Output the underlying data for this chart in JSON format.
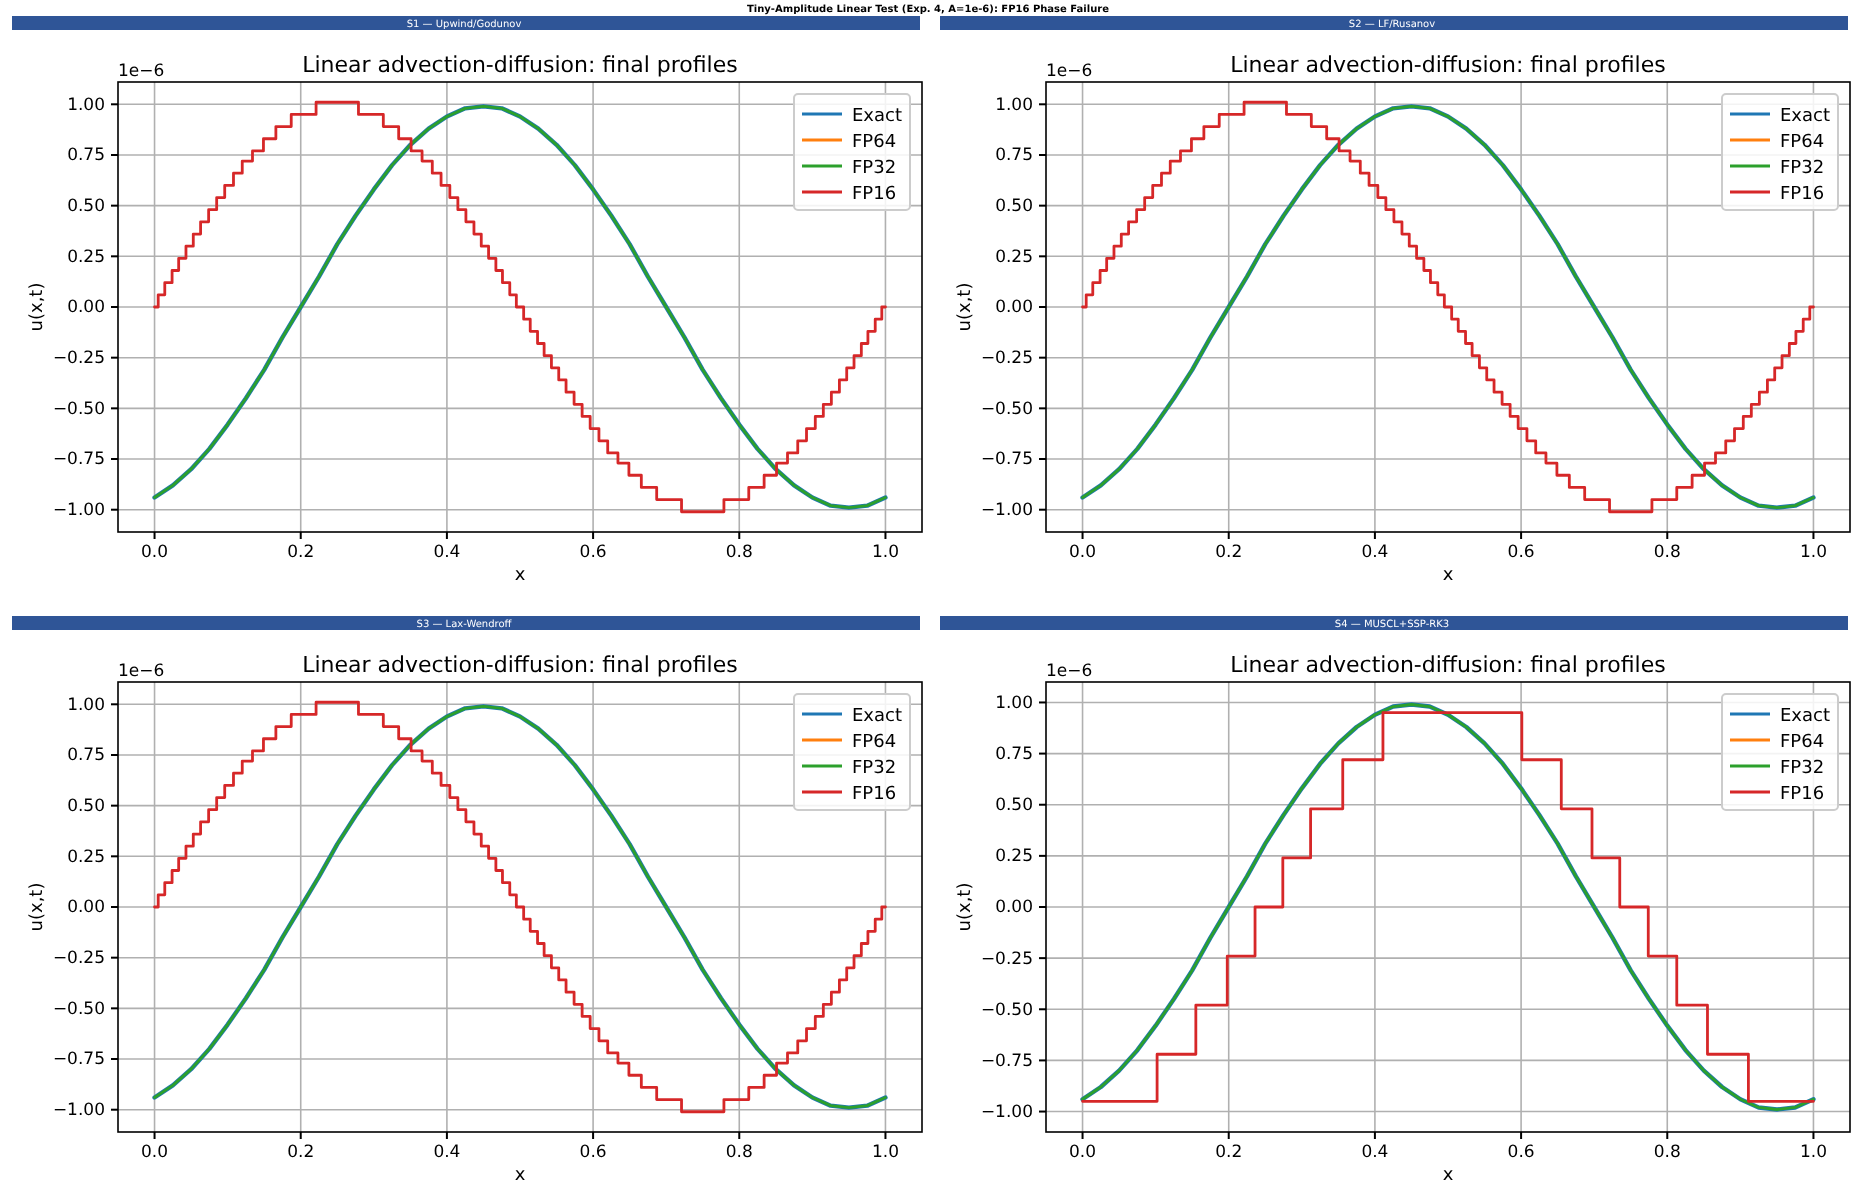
{
  "chart_data": [
    {
      "type": "line",
      "title": "Linear advection-diffusion: final profiles",
      "subtitle": "S1 — Upwind/Godunov",
      "xlabel": "x",
      "ylabel": "u(x,t)",
      "annotations": [
        "Tiny-Amplitude Linear Test (Exp. 4, A=1e-6): FP16 Phase Failure",
        "1e−6"
      ],
      "legend": "top right",
      "grid": true,
      "xlim": [
        -0.05,
        1.05
      ],
      "ylim": [
        -1.11,
        1.11
      ],
      "xticks": [
        {
          "value": 0,
          "label": "0.0"
        },
        {
          "value": 0.2,
          "label": "0.2"
        },
        {
          "value": 0.4,
          "label": "0.4"
        },
        {
          "value": 0.6,
          "label": "0.6"
        },
        {
          "value": 0.8,
          "label": "0.8"
        },
        {
          "value": 1,
          "label": "1.0"
        }
      ],
      "yticks": [
        {
          "value": -1,
          "label": "−1.00"
        },
        {
          "value": -0.75,
          "label": "−0.75"
        },
        {
          "value": -0.5,
          "label": "−0.50"
        },
        {
          "value": -0.25,
          "label": "−0.25"
        },
        {
          "value": 0,
          "label": "0.00"
        },
        {
          "value": 0.25,
          "label": "0.25"
        },
        {
          "value": 0.5,
          "label": "0.50"
        },
        {
          "value": 0.75,
          "label": "0.75"
        },
        {
          "value": 1,
          "label": "1.00"
        }
      ],
      "x": [
        0,
        0.025,
        0.05,
        0.075,
        0.1,
        0.125,
        0.15,
        0.175,
        0.2,
        0.225,
        0.25,
        0.275,
        0.3,
        0.325,
        0.35,
        0.375,
        0.4,
        0.425,
        0.45,
        0.475,
        0.5,
        0.525,
        0.55,
        0.575,
        0.6,
        0.625,
        0.65,
        0.675,
        0.7,
        0.725,
        0.75,
        0.775,
        0.8,
        0.825,
        0.85,
        0.875,
        0.9,
        0.925,
        0.95,
        0.975,
        1
      ],
      "series": [
        {
          "name": "Exact",
          "color": "#1f77b4",
          "values": [
            -0.94,
            -0.88,
            -0.8,
            -0.7,
            -0.58,
            -0.45,
            -0.31,
            -0.15,
            0,
            0.15,
            0.31,
            0.45,
            0.58,
            0.7,
            0.8,
            0.88,
            0.94,
            0.98,
            0.99,
            0.98,
            0.94,
            0.88,
            0.8,
            0.7,
            0.58,
            0.45,
            0.31,
            0.15,
            0,
            -0.15,
            -0.31,
            -0.45,
            -0.58,
            -0.7,
            -0.8,
            -0.88,
            -0.94,
            -0.98,
            -0.99,
            -0.98,
            -0.94
          ]
        },
        {
          "name": "FP64",
          "color": "#ff7f0e",
          "values": [
            null,
            null,
            null,
            null,
            null,
            null,
            null,
            null,
            null,
            null,
            null,
            null,
            null,
            null,
            null,
            null,
            null,
            null,
            null,
            null,
            null,
            null,
            null,
            null,
            null,
            null,
            null,
            null,
            null,
            null,
            null,
            null,
            null,
            null,
            null,
            null,
            null,
            null,
            null,
            null,
            null
          ]
        },
        {
          "name": "FP32",
          "color": "#2ca02c",
          "values": [
            -0.94,
            -0.88,
            -0.8,
            -0.7,
            -0.58,
            -0.45,
            -0.31,
            -0.15,
            0,
            0.15,
            0.31,
            0.45,
            0.58,
            0.7,
            0.8,
            0.88,
            0.94,
            0.98,
            0.99,
            0.98,
            0.94,
            0.88,
            0.8,
            0.7,
            0.58,
            0.45,
            0.31,
            0.15,
            0,
            -0.15,
            -0.31,
            -0.45,
            -0.58,
            -0.7,
            -0.8,
            -0.88,
            -0.94,
            -0.98,
            -0.99,
            -0.98,
            -0.94
          ]
        },
        {
          "name": "FP16",
          "color": "#d62728",
          "type": "step",
          "x": [
            0,
            0.005,
            0.014,
            0.024,
            0.033,
            0.043,
            0.053,
            0.063,
            0.074,
            0.085,
            0.096,
            0.108,
            0.12,
            0.134,
            0.149,
            0.166,
            0.187,
            0.221,
            0.279,
            0.313,
            0.334,
            0.351,
            0.366,
            0.38,
            0.392,
            0.404,
            0.415,
            0.426,
            0.437,
            0.447,
            0.457,
            0.467,
            0.476,
            0.486,
            0.495,
            0.505,
            0.514,
            0.524,
            0.533,
            0.543,
            0.553,
            0.563,
            0.574,
            0.585,
            0.596,
            0.608,
            0.62,
            0.634,
            0.649,
            0.666,
            0.687,
            0.721,
            0.779,
            0.813,
            0.834,
            0.851,
            0.866,
            0.88,
            0.892,
            0.904,
            0.915,
            0.926,
            0.937,
            0.947,
            0.957,
            0.967,
            0.976,
            0.986,
            0.995,
            1
          ],
          "values": [
            0,
            0.06,
            0.12,
            0.18,
            0.24,
            0.3,
            0.36,
            0.42,
            0.48,
            0.54,
            0.6,
            0.66,
            0.72,
            0.77,
            0.83,
            0.89,
            0.95,
            1.01,
            0.95,
            0.89,
            0.83,
            0.77,
            0.72,
            0.66,
            0.6,
            0.54,
            0.48,
            0.42,
            0.36,
            0.3,
            0.24,
            0.18,
            0.12,
            0.06,
            0,
            -0.06,
            -0.12,
            -0.18,
            -0.24,
            -0.3,
            -0.36,
            -0.42,
            -0.48,
            -0.54,
            -0.6,
            -0.66,
            -0.72,
            -0.77,
            -0.83,
            -0.89,
            -0.95,
            -1.01,
            -0.95,
            -0.89,
            -0.83,
            -0.77,
            -0.72,
            -0.66,
            -0.6,
            -0.54,
            -0.48,
            -0.42,
            -0.36,
            -0.3,
            -0.24,
            -0.18,
            -0.12,
            -0.06,
            0,
            0
          ]
        }
      ]
    },
    {
      "type": "line",
      "title": "Linear advection-diffusion: final profiles",
      "subtitle": "S2 — LF/Rusanov",
      "xlabel": "x",
      "ylabel": "u(x,t)",
      "annotations": [
        "1e−6"
      ],
      "legend": "top right",
      "grid": true,
      "xlim": [
        -0.05,
        1.05
      ],
      "ylim": [
        -1.11,
        1.11
      ],
      "xticks": [
        {
          "value": 0,
          "label": "0.0"
        },
        {
          "value": 0.2,
          "label": "0.2"
        },
        {
          "value": 0.4,
          "label": "0.4"
        },
        {
          "value": 0.6,
          "label": "0.6"
        },
        {
          "value": 0.8,
          "label": "0.8"
        },
        {
          "value": 1,
          "label": "1.0"
        }
      ],
      "yticks": [
        {
          "value": -1,
          "label": "−1.00"
        },
        {
          "value": -0.75,
          "label": "−0.75"
        },
        {
          "value": -0.5,
          "label": "−0.50"
        },
        {
          "value": -0.25,
          "label": "−0.25"
        },
        {
          "value": 0,
          "label": "0.00"
        },
        {
          "value": 0.25,
          "label": "0.25"
        },
        {
          "value": 0.5,
          "label": "0.50"
        },
        {
          "value": 0.75,
          "label": "0.75"
        },
        {
          "value": 1,
          "label": "1.00"
        }
      ],
      "x": [
        0,
        0.025,
        0.05,
        0.075,
        0.1,
        0.125,
        0.15,
        0.175,
        0.2,
        0.225,
        0.25,
        0.275,
        0.3,
        0.325,
        0.35,
        0.375,
        0.4,
        0.425,
        0.45,
        0.475,
        0.5,
        0.525,
        0.55,
        0.575,
        0.6,
        0.625,
        0.65,
        0.675,
        0.7,
        0.725,
        0.75,
        0.775,
        0.8,
        0.825,
        0.85,
        0.875,
        0.9,
        0.925,
        0.95,
        0.975,
        1
      ],
      "series": [
        {
          "name": "Exact",
          "color": "#1f77b4",
          "values": [
            -0.94,
            -0.88,
            -0.8,
            -0.7,
            -0.58,
            -0.45,
            -0.31,
            -0.15,
            0,
            0.15,
            0.31,
            0.45,
            0.58,
            0.7,
            0.8,
            0.88,
            0.94,
            0.98,
            0.99,
            0.98,
            0.94,
            0.88,
            0.8,
            0.7,
            0.58,
            0.45,
            0.31,
            0.15,
            0,
            -0.15,
            -0.31,
            -0.45,
            -0.58,
            -0.7,
            -0.8,
            -0.88,
            -0.94,
            -0.98,
            -0.99,
            -0.98,
            -0.94
          ]
        },
        {
          "name": "FP64",
          "color": "#ff7f0e",
          "values": [
            null,
            null,
            null,
            null,
            null,
            null,
            null,
            null,
            null,
            null,
            null,
            null,
            null,
            null,
            null,
            null,
            null,
            null,
            null,
            null,
            null,
            null,
            null,
            null,
            null,
            null,
            null,
            null,
            null,
            null,
            null,
            null,
            null,
            null,
            null,
            null,
            null,
            null,
            null,
            null,
            null
          ]
        },
        {
          "name": "FP32",
          "color": "#2ca02c",
          "values": [
            -0.94,
            -0.88,
            -0.8,
            -0.7,
            -0.58,
            -0.45,
            -0.31,
            -0.15,
            0,
            0.15,
            0.31,
            0.45,
            0.58,
            0.7,
            0.8,
            0.88,
            0.94,
            0.98,
            0.99,
            0.98,
            0.94,
            0.88,
            0.8,
            0.7,
            0.58,
            0.45,
            0.31,
            0.15,
            0,
            -0.15,
            -0.31,
            -0.45,
            -0.58,
            -0.7,
            -0.8,
            -0.88,
            -0.94,
            -0.98,
            -0.99,
            -0.98,
            -0.94
          ]
        },
        {
          "name": "FP16",
          "color": "#d62728",
          "type": "step",
          "x": [
            0,
            0.005,
            0.014,
            0.024,
            0.033,
            0.043,
            0.053,
            0.063,
            0.074,
            0.085,
            0.096,
            0.108,
            0.12,
            0.134,
            0.149,
            0.166,
            0.187,
            0.221,
            0.279,
            0.313,
            0.334,
            0.351,
            0.366,
            0.38,
            0.392,
            0.404,
            0.415,
            0.426,
            0.437,
            0.447,
            0.457,
            0.467,
            0.476,
            0.486,
            0.495,
            0.505,
            0.514,
            0.524,
            0.533,
            0.543,
            0.553,
            0.563,
            0.574,
            0.585,
            0.596,
            0.608,
            0.62,
            0.634,
            0.649,
            0.666,
            0.687,
            0.721,
            0.779,
            0.813,
            0.834,
            0.851,
            0.866,
            0.88,
            0.892,
            0.904,
            0.915,
            0.926,
            0.937,
            0.947,
            0.957,
            0.967,
            0.976,
            0.986,
            0.995,
            1
          ],
          "values": [
            0,
            0.06,
            0.12,
            0.18,
            0.24,
            0.3,
            0.36,
            0.42,
            0.48,
            0.54,
            0.6,
            0.66,
            0.72,
            0.77,
            0.83,
            0.89,
            0.95,
            1.01,
            0.95,
            0.89,
            0.83,
            0.77,
            0.72,
            0.66,
            0.6,
            0.54,
            0.48,
            0.42,
            0.36,
            0.3,
            0.24,
            0.18,
            0.12,
            0.06,
            0,
            -0.06,
            -0.12,
            -0.18,
            -0.24,
            -0.3,
            -0.36,
            -0.42,
            -0.48,
            -0.54,
            -0.6,
            -0.66,
            -0.72,
            -0.77,
            -0.83,
            -0.89,
            -0.95,
            -1.01,
            -0.95,
            -0.89,
            -0.83,
            -0.77,
            -0.72,
            -0.66,
            -0.6,
            -0.54,
            -0.48,
            -0.42,
            -0.36,
            -0.3,
            -0.24,
            -0.18,
            -0.12,
            -0.06,
            0,
            0
          ]
        }
      ]
    },
    {
      "type": "line",
      "title": "Linear advection-diffusion: final profiles",
      "subtitle": "S3 — Lax-Wendroff",
      "xlabel": "x",
      "ylabel": "u(x,t)",
      "annotations": [
        "1e−6"
      ],
      "legend": "top right",
      "grid": true,
      "xlim": [
        -0.05,
        1.05
      ],
      "ylim": [
        -1.11,
        1.11
      ],
      "xticks": [
        {
          "value": 0,
          "label": "0.0"
        },
        {
          "value": 0.2,
          "label": "0.2"
        },
        {
          "value": 0.4,
          "label": "0.4"
        },
        {
          "value": 0.6,
          "label": "0.6"
        },
        {
          "value": 0.8,
          "label": "0.8"
        },
        {
          "value": 1,
          "label": "1.0"
        }
      ],
      "yticks": [
        {
          "value": -1,
          "label": "−1.00"
        },
        {
          "value": -0.75,
          "label": "−0.75"
        },
        {
          "value": -0.5,
          "label": "−0.50"
        },
        {
          "value": -0.25,
          "label": "−0.25"
        },
        {
          "value": 0,
          "label": "0.00"
        },
        {
          "value": 0.25,
          "label": "0.25"
        },
        {
          "value": 0.5,
          "label": "0.50"
        },
        {
          "value": 0.75,
          "label": "0.75"
        },
        {
          "value": 1,
          "label": "1.00"
        }
      ],
      "x": [
        0,
        0.025,
        0.05,
        0.075,
        0.1,
        0.125,
        0.15,
        0.175,
        0.2,
        0.225,
        0.25,
        0.275,
        0.3,
        0.325,
        0.35,
        0.375,
        0.4,
        0.425,
        0.45,
        0.475,
        0.5,
        0.525,
        0.55,
        0.575,
        0.6,
        0.625,
        0.65,
        0.675,
        0.7,
        0.725,
        0.75,
        0.775,
        0.8,
        0.825,
        0.85,
        0.875,
        0.9,
        0.925,
        0.95,
        0.975,
        1
      ],
      "series": [
        {
          "name": "Exact",
          "color": "#1f77b4",
          "values": [
            -0.94,
            -0.88,
            -0.8,
            -0.7,
            -0.58,
            -0.45,
            -0.31,
            -0.15,
            0,
            0.15,
            0.31,
            0.45,
            0.58,
            0.7,
            0.8,
            0.88,
            0.94,
            0.98,
            0.99,
            0.98,
            0.94,
            0.88,
            0.8,
            0.7,
            0.58,
            0.45,
            0.31,
            0.15,
            0,
            -0.15,
            -0.31,
            -0.45,
            -0.58,
            -0.7,
            -0.8,
            -0.88,
            -0.94,
            -0.98,
            -0.99,
            -0.98,
            -0.94
          ]
        },
        {
          "name": "FP64",
          "color": "#ff7f0e",
          "values": [
            null,
            null,
            null,
            null,
            null,
            null,
            null,
            null,
            null,
            null,
            null,
            null,
            null,
            null,
            null,
            null,
            null,
            null,
            null,
            null,
            null,
            null,
            null,
            null,
            null,
            null,
            null,
            null,
            null,
            null,
            null,
            null,
            null,
            null,
            null,
            null,
            null,
            null,
            null,
            null,
            null
          ]
        },
        {
          "name": "FP32",
          "color": "#2ca02c",
          "values": [
            -0.94,
            -0.88,
            -0.8,
            -0.7,
            -0.58,
            -0.45,
            -0.31,
            -0.15,
            0,
            0.15,
            0.31,
            0.45,
            0.58,
            0.7,
            0.8,
            0.88,
            0.94,
            0.98,
            0.99,
            0.98,
            0.94,
            0.88,
            0.8,
            0.7,
            0.58,
            0.45,
            0.31,
            0.15,
            0,
            -0.15,
            -0.31,
            -0.45,
            -0.58,
            -0.7,
            -0.8,
            -0.88,
            -0.94,
            -0.98,
            -0.99,
            -0.98,
            -0.94
          ]
        },
        {
          "name": "FP16",
          "color": "#d62728",
          "type": "step",
          "x": [
            0,
            0.005,
            0.014,
            0.024,
            0.033,
            0.043,
            0.053,
            0.063,
            0.074,
            0.085,
            0.096,
            0.108,
            0.12,
            0.134,
            0.149,
            0.166,
            0.187,
            0.221,
            0.279,
            0.313,
            0.334,
            0.351,
            0.366,
            0.38,
            0.392,
            0.404,
            0.415,
            0.426,
            0.437,
            0.447,
            0.457,
            0.467,
            0.476,
            0.486,
            0.495,
            0.505,
            0.514,
            0.524,
            0.533,
            0.543,
            0.553,
            0.563,
            0.574,
            0.585,
            0.596,
            0.608,
            0.62,
            0.634,
            0.649,
            0.666,
            0.687,
            0.721,
            0.779,
            0.813,
            0.834,
            0.851,
            0.866,
            0.88,
            0.892,
            0.904,
            0.915,
            0.926,
            0.937,
            0.947,
            0.957,
            0.967,
            0.976,
            0.986,
            0.995,
            1
          ],
          "values": [
            0,
            0.06,
            0.12,
            0.18,
            0.24,
            0.3,
            0.36,
            0.42,
            0.48,
            0.54,
            0.6,
            0.66,
            0.72,
            0.77,
            0.83,
            0.89,
            0.95,
            1.01,
            0.95,
            0.89,
            0.83,
            0.77,
            0.72,
            0.66,
            0.6,
            0.54,
            0.48,
            0.42,
            0.36,
            0.3,
            0.24,
            0.18,
            0.12,
            0.06,
            0,
            -0.06,
            -0.12,
            -0.18,
            -0.24,
            -0.3,
            -0.36,
            -0.42,
            -0.48,
            -0.54,
            -0.6,
            -0.66,
            -0.72,
            -0.77,
            -0.83,
            -0.89,
            -0.95,
            -1.01,
            -0.95,
            -0.89,
            -0.83,
            -0.77,
            -0.72,
            -0.66,
            -0.6,
            -0.54,
            -0.48,
            -0.42,
            -0.36,
            -0.3,
            -0.24,
            -0.18,
            -0.12,
            -0.06,
            0,
            0
          ]
        }
      ]
    },
    {
      "type": "line",
      "title": "Linear advection-diffusion: final profiles",
      "subtitle": "S4 — MUSCL+SSP-RK3",
      "xlabel": "x",
      "ylabel": "u(x,t)",
      "annotations": [
        "1e−6"
      ],
      "legend": "top right",
      "grid": true,
      "xlim": [
        -0.05,
        1.05
      ],
      "ylim": [
        -1.1,
        1.1
      ],
      "xticks": [
        {
          "value": 0,
          "label": "0.0"
        },
        {
          "value": 0.2,
          "label": "0.2"
        },
        {
          "value": 0.4,
          "label": "0.4"
        },
        {
          "value": 0.6,
          "label": "0.6"
        },
        {
          "value": 0.8,
          "label": "0.8"
        },
        {
          "value": 1,
          "label": "1.0"
        }
      ],
      "yticks": [
        {
          "value": -1,
          "label": "−1.00"
        },
        {
          "value": -0.75,
          "label": "−0.75"
        },
        {
          "value": -0.5,
          "label": "−0.50"
        },
        {
          "value": -0.25,
          "label": "−0.25"
        },
        {
          "value": 0,
          "label": "0.00"
        },
        {
          "value": 0.25,
          "label": "0.25"
        },
        {
          "value": 0.5,
          "label": "0.50"
        },
        {
          "value": 0.75,
          "label": "0.75"
        },
        {
          "value": 1,
          "label": "1.00"
        }
      ],
      "x": [
        0,
        0.025,
        0.05,
        0.075,
        0.1,
        0.125,
        0.15,
        0.175,
        0.2,
        0.225,
        0.25,
        0.275,
        0.3,
        0.325,
        0.35,
        0.375,
        0.4,
        0.425,
        0.45,
        0.475,
        0.5,
        0.525,
        0.55,
        0.575,
        0.6,
        0.625,
        0.65,
        0.675,
        0.7,
        0.725,
        0.75,
        0.775,
        0.8,
        0.825,
        0.85,
        0.875,
        0.9,
        0.925,
        0.95,
        0.975,
        1
      ],
      "series": [
        {
          "name": "Exact",
          "color": "#1f77b4",
          "values": [
            -0.94,
            -0.88,
            -0.8,
            -0.7,
            -0.58,
            -0.45,
            -0.31,
            -0.15,
            0,
            0.15,
            0.31,
            0.45,
            0.58,
            0.7,
            0.8,
            0.88,
            0.94,
            0.98,
            0.99,
            0.98,
            0.94,
            0.88,
            0.8,
            0.7,
            0.58,
            0.45,
            0.31,
            0.15,
            0,
            -0.15,
            -0.31,
            -0.45,
            -0.58,
            -0.7,
            -0.8,
            -0.88,
            -0.94,
            -0.98,
            -0.99,
            -0.98,
            -0.94
          ]
        },
        {
          "name": "FP64",
          "color": "#ff7f0e",
          "values": [
            null,
            null,
            null,
            null,
            null,
            null,
            null,
            null,
            null,
            null,
            null,
            null,
            null,
            null,
            null,
            null,
            null,
            null,
            null,
            null,
            null,
            null,
            null,
            null,
            null,
            null,
            null,
            null,
            null,
            null,
            null,
            null,
            null,
            null,
            null,
            null,
            null,
            null,
            null,
            null,
            null
          ]
        },
        {
          "name": "FP32",
          "color": "#2ca02c",
          "values": [
            -0.94,
            -0.88,
            -0.8,
            -0.7,
            -0.58,
            -0.45,
            -0.31,
            -0.15,
            0,
            0.15,
            0.31,
            0.45,
            0.58,
            0.7,
            0.8,
            0.88,
            0.94,
            0.98,
            0.99,
            0.98,
            0.94,
            0.88,
            0.8,
            0.7,
            0.58,
            0.45,
            0.31,
            0.15,
            0,
            -0.15,
            -0.31,
            -0.45,
            -0.58,
            -0.7,
            -0.8,
            -0.88,
            -0.94,
            -0.98,
            -0.99,
            -0.98,
            -0.94
          ]
        },
        {
          "name": "FP16",
          "color": "#d62728",
          "type": "step",
          "x": [
            0,
            0.102,
            0.155,
            0.198,
            0.236,
            0.274,
            0.312,
            0.356,
            0.411,
            0.601,
            0.655,
            0.697,
            0.735,
            0.774,
            0.813,
            0.855,
            0.911,
            1
          ],
          "values": [
            -0.95,
            -0.72,
            -0.48,
            -0.24,
            0,
            0.24,
            0.48,
            0.72,
            0.95,
            0.72,
            0.48,
            0.24,
            0,
            -0.24,
            -0.48,
            -0.72,
            -0.95,
            -0.95
          ]
        }
      ]
    }
  ]
}
